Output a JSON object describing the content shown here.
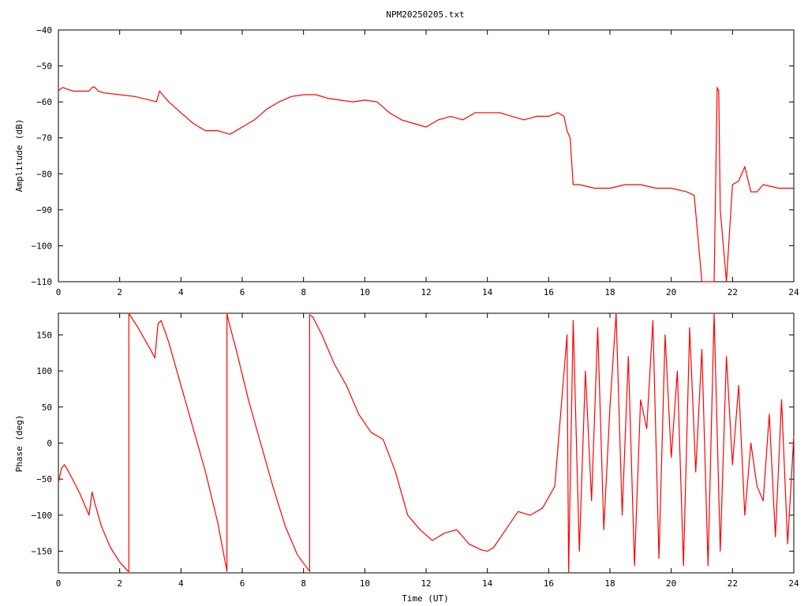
{
  "chart_data": [
    {
      "type": "line",
      "title": "NPM20250205.txt",
      "xlabel": "",
      "ylabel": "Amplitude (dB)",
      "xlim": [
        0,
        24
      ],
      "ylim": [
        -110,
        -40
      ],
      "xticks": [
        0,
        2,
        4,
        6,
        8,
        10,
        12,
        14,
        16,
        18,
        20,
        22,
        24
      ],
      "yticks": [
        -110,
        -100,
        -90,
        -80,
        -70,
        -60,
        -50,
        -40
      ],
      "x_tick_labels": [
        "0",
        "2",
        "4",
        "6",
        "8",
        "10",
        "12",
        "14",
        "16",
        "18",
        "20",
        "22",
        "24"
      ],
      "y_tick_labels": [
        "−110",
        "−100",
        "−90",
        "−80",
        "−70",
        "−60",
        "−50",
        "−40"
      ],
      "grid": false,
      "colors": {
        "line": "#ff0000",
        "axes": "#000000"
      },
      "series": [
        {
          "x": [
            0,
            0.05,
            0.15,
            0.3,
            0.5,
            0.8,
            1.0,
            1.1,
            1.15,
            1.2,
            1.3,
            1.5,
            2.0,
            2.5,
            3.0,
            3.2,
            3.3,
            3.4,
            3.6,
            4.0,
            4.4,
            4.8,
            5.2,
            5.6,
            6.0,
            6.4,
            6.8,
            7.2,
            7.6,
            8.0,
            8.4,
            8.8,
            9.2,
            9.6,
            10.0,
            10.4,
            10.8,
            11.2,
            11.6,
            12.0,
            12.4,
            12.8,
            13.2,
            13.6,
            14.0,
            14.4,
            14.8,
            15.2,
            15.6,
            16.0,
            16.3,
            16.5,
            16.6,
            16.7,
            16.8,
            17.0,
            17.5,
            18.0,
            18.5,
            19.0,
            19.5,
            20.0,
            20.5,
            20.75,
            21.0,
            21.4,
            21.5,
            21.55,
            21.6,
            21.8,
            22.0,
            22.2,
            22.4,
            22.6,
            22.8,
            23.0,
            23.5,
            24.0
          ],
          "values": [
            -57,
            -56.5,
            -56,
            -56.5,
            -57,
            -57,
            -57,
            -56,
            -55.8,
            -56,
            -57,
            -57.5,
            -58,
            -58.5,
            -59.5,
            -60,
            -57,
            -58,
            -60,
            -63,
            -66,
            -68,
            -68,
            -69,
            -67,
            -65,
            -62,
            -60,
            -58.5,
            -58,
            -58,
            -59,
            -59.5,
            -60,
            -59.5,
            -60,
            -63,
            -65,
            -66,
            -67,
            -65,
            -64,
            -65,
            -63,
            -63,
            -63,
            -64,
            -65,
            -64,
            -64,
            -63,
            -64,
            -68,
            -70,
            -83,
            -83,
            -84,
            -84,
            -83,
            -83,
            -84,
            -84,
            -85,
            -86,
            -110,
            -110,
            -56,
            -57,
            -90,
            -110,
            -83,
            -82,
            -78,
            -85,
            -85,
            -83,
            -84,
            -84
          ]
        }
      ]
    },
    {
      "type": "line",
      "title": "",
      "xlabel": "Time (UT)",
      "ylabel": "Phase (deg)",
      "xlim": [
        0,
        24
      ],
      "ylim": [
        -180,
        180
      ],
      "xticks": [
        0,
        2,
        4,
        6,
        8,
        10,
        12,
        14,
        16,
        18,
        20,
        22,
        24
      ],
      "yticks": [
        -150,
        -100,
        -50,
        0,
        50,
        100,
        150
      ],
      "x_tick_labels": [
        "0",
        "2",
        "4",
        "6",
        "8",
        "10",
        "12",
        "14",
        "16",
        "18",
        "20",
        "22",
        "24"
      ],
      "y_tick_labels": [
        "−150",
        "−100",
        "−50",
        "0",
        "50",
        "100",
        "150"
      ],
      "grid": false,
      "colors": {
        "line": "#ff0000",
        "axes": "#000000"
      },
      "series": [
        {
          "x": [
            0,
            0.1,
            0.2,
            0.4,
            0.7,
            1.0,
            1.1,
            1.2,
            1.4,
            1.7,
            2.0,
            2.28,
            2.3,
            2.3,
            2.6,
            3.0,
            3.15,
            3.25,
            3.35,
            3.6,
            4.0,
            4.4,
            4.8,
            5.2,
            5.5,
            5.5,
            5.55,
            5.8,
            6.2,
            6.6,
            7.0,
            7.4,
            7.8,
            8.2,
            8.2,
            8.3,
            8.6,
            9.0,
            9.4,
            9.8,
            10.2,
            10.6,
            11.0,
            11.4,
            11.8,
            12.2,
            12.6,
            13.0,
            13.4,
            13.8,
            14.0,
            14.2,
            14.6,
            15.0,
            15.4,
            15.8,
            16.2,
            16.6,
            16.65,
            16.8,
            17.0,
            17.2,
            17.4,
            17.6,
            17.8,
            18.0,
            18.2,
            18.4,
            18.6,
            18.8,
            19.0,
            19.2,
            19.4,
            19.6,
            19.8,
            20.0,
            20.2,
            20.4,
            20.6,
            20.8,
            21.0,
            21.2,
            21.4,
            21.6,
            21.8,
            22.0,
            22.2,
            22.4,
            22.6,
            22.8,
            23.0,
            23.2,
            23.4,
            23.6,
            23.8,
            24.0
          ],
          "values": [
            -55,
            -35,
            -30,
            -45,
            -70,
            -100,
            -68,
            -85,
            -115,
            -145,
            -165,
            -178,
            -178,
            180,
            160,
            130,
            118,
            165,
            170,
            140,
            80,
            20,
            -40,
            -110,
            -178,
            180,
            170,
            130,
            60,
            0,
            -60,
            -115,
            -155,
            -178,
            178,
            175,
            150,
            110,
            80,
            40,
            15,
            5,
            -40,
            -100,
            -120,
            -135,
            -125,
            -120,
            -140,
            -148,
            -150,
            -145,
            -120,
            -95,
            -100,
            -90,
            -60,
            150,
            -180,
            170,
            -150,
            100,
            -80,
            160,
            -120,
            50,
            180,
            -100,
            120,
            -170,
            60,
            20,
            170,
            -160,
            150,
            -20,
            100,
            -170,
            160,
            -40,
            130,
            -170,
            180,
            -150,
            120,
            -30,
            80,
            -100,
            0,
            -60,
            -80,
            40,
            -130,
            60,
            -140,
            10
          ]
        }
      ]
    }
  ]
}
